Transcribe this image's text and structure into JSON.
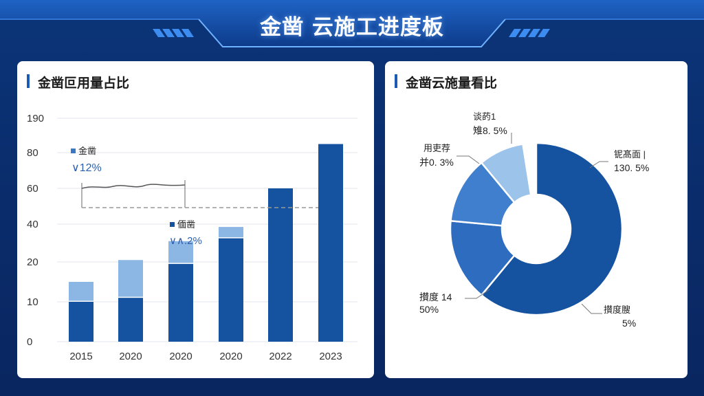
{
  "header": {
    "title": "金凿 云施工进度板"
  },
  "colors": {
    "dark_blue": "#15529f",
    "light_blue": "#8cb6e3",
    "mid_blue": "#3a78c4",
    "pie_light": "#9cc3ea",
    "background": "#0a2c6b"
  },
  "chart_data": [
    {
      "type": "bar",
      "title": "金凿叵用量占比",
      "y_tick_labels": [
        "0",
        "10",
        "20",
        "40",
        "60",
        "80",
        "190"
      ],
      "categories": [
        "2015",
        "2020",
        "2020",
        "2020",
        "2022",
        "2023"
      ],
      "series": [
        {
          "values": [
            10,
            11,
            19.5,
            32.5,
            60,
            85
          ]
        },
        {
          "values": [
            5,
            10,
            11.5,
            6,
            0,
            0
          ]
        }
      ],
      "annotations": [
        {
          "label": "金凿",
          "value": "∨12%"
        },
        {
          "label": "偭凿",
          "value": "∨∧.2%"
        }
      ],
      "legend": "none",
      "grid": true
    },
    {
      "type": "pie",
      "title": "金凿云施量看比",
      "donut": true,
      "slices": [
        {
          "label": "铌髙面 |",
          "value_label": "130. 5%",
          "share": 0.61
        },
        {
          "label": "攅度 14",
          "value_label": "50%",
          "share": 0.155
        },
        {
          "label": "用吏荐",
          "value_label": "并0. 3%",
          "share": 0.125
        },
        {
          "label": "谈菂1",
          "value_label": "雉8. 5%",
          "share": 0.085
        }
      ],
      "extra_label": {
        "label": "攅度膄",
        "value_label": "5%"
      }
    }
  ]
}
